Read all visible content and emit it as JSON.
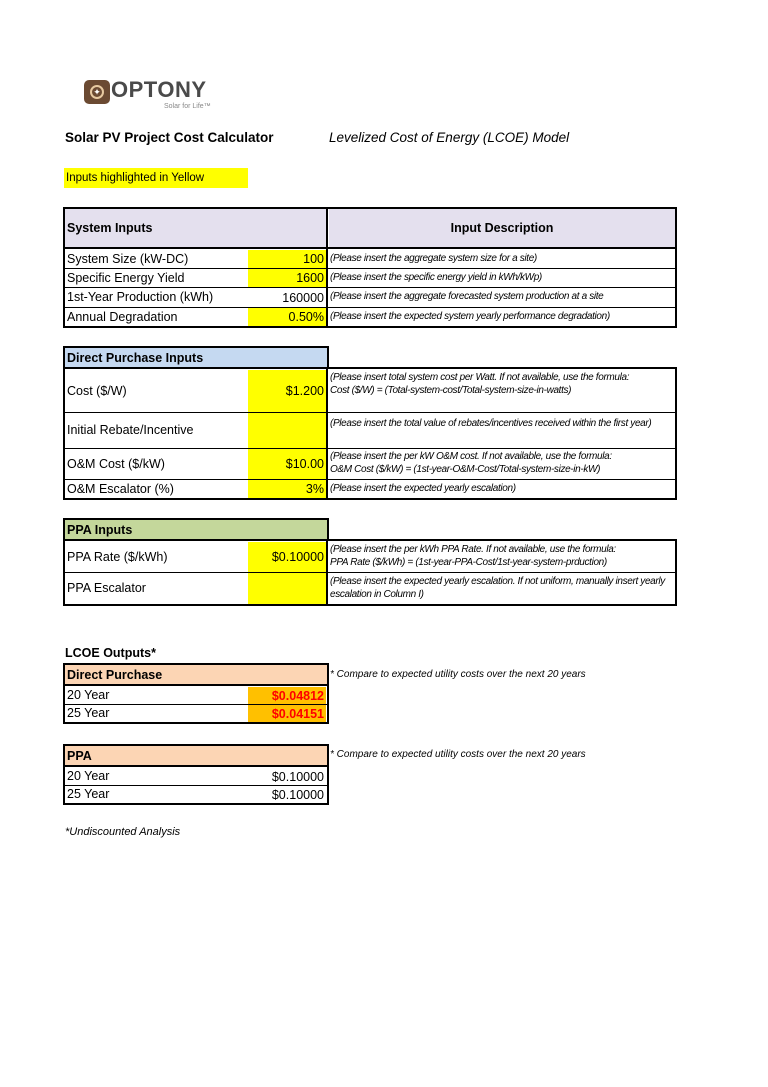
{
  "logo": {
    "name": "OPTONY",
    "tagline": "Solar for Life™"
  },
  "header": {
    "title": "Solar PV Project Cost Calculator",
    "subtitle": "Levelized Cost of Energy (LCOE) Model",
    "legend": "Inputs highlighted in Yellow"
  },
  "colors": {
    "input_yellow": "#ffff00",
    "system_header": "#e4e0ee",
    "direct_header": "#c5d9f1",
    "ppa_header": "#c4d79b",
    "output_header": "#fcd5b4",
    "output_value_bg": "#ffc000",
    "output_value_text": "#ff0000"
  },
  "system": {
    "header": "System Inputs",
    "desc_header": "Input Description",
    "rows": [
      {
        "label": "System Size (kW-DC)",
        "value": "100",
        "desc": "(Please insert the aggregate system size for a site)"
      },
      {
        "label": "Specific Energy Yield",
        "value": "1600",
        "desc": "(Please insert the specific energy yield in kWh/kWp)"
      },
      {
        "label": "1st-Year Production (kWh)",
        "value": "160000",
        "desc": "(Please insert the aggregate forecasted system production at a site"
      },
      {
        "label": "Annual Degradation",
        "value": "0.50%",
        "desc": "(Please insert the expected system yearly performance degradation)"
      }
    ]
  },
  "direct": {
    "header": "Direct Purchase Inputs",
    "rows": [
      {
        "label": "Cost ($/W)",
        "value": "$1.200",
        "desc": "(Please insert total system cost per Watt. If not available, use the formula:",
        "desc2": "Cost ($/W) = (Total-system-cost/Total-system-size-in-watts)"
      },
      {
        "label": "Initial Rebate/Incentive",
        "value": "",
        "desc": "(Please insert the total value of rebates/incentives received within the first year)"
      },
      {
        "label": "O&M Cost ($/kW)",
        "value": "$10.00",
        "desc": "(Please insert the per kW O&M cost. If not available, use the formula:",
        "desc2": "O&M Cost ($/kW) = (1st-year-O&M-Cost/Total-system-size-in-kW)"
      },
      {
        "label": "O&M Escalator (%)",
        "value": "3%",
        "desc": "(Please insert the expected yearly escalation)"
      }
    ]
  },
  "ppa": {
    "header": "PPA Inputs",
    "rows": [
      {
        "label": "PPA Rate ($/kWh)",
        "value": "$0.10000",
        "desc": "(Please insert the per kWh PPA Rate. If not available, use the formula:",
        "desc2": "PPA Rate ($/kWh) = (1st-year-PPA-Cost/1st-year-system-prduction)"
      },
      {
        "label": "PPA Escalator",
        "value": "",
        "desc": "(Please insert the expected yearly escalation. If not uniform, manually insert yearly escalation in Column I)"
      }
    ]
  },
  "outputs": {
    "title": "LCOE Outputs*",
    "note": "* Compare to expected utility costs over the next 20 years",
    "footnote": "*Undiscounted Analysis",
    "direct": {
      "header": "Direct Purchase",
      "rows": [
        {
          "label": "20 Year",
          "value": "$0.04812"
        },
        {
          "label": "25 Year",
          "value": "$0.04151"
        }
      ]
    },
    "ppa": {
      "header": "PPA",
      "rows": [
        {
          "label": "20 Year",
          "value": "$0.10000"
        },
        {
          "label": "25 Year",
          "value": "$0.10000"
        }
      ]
    }
  }
}
